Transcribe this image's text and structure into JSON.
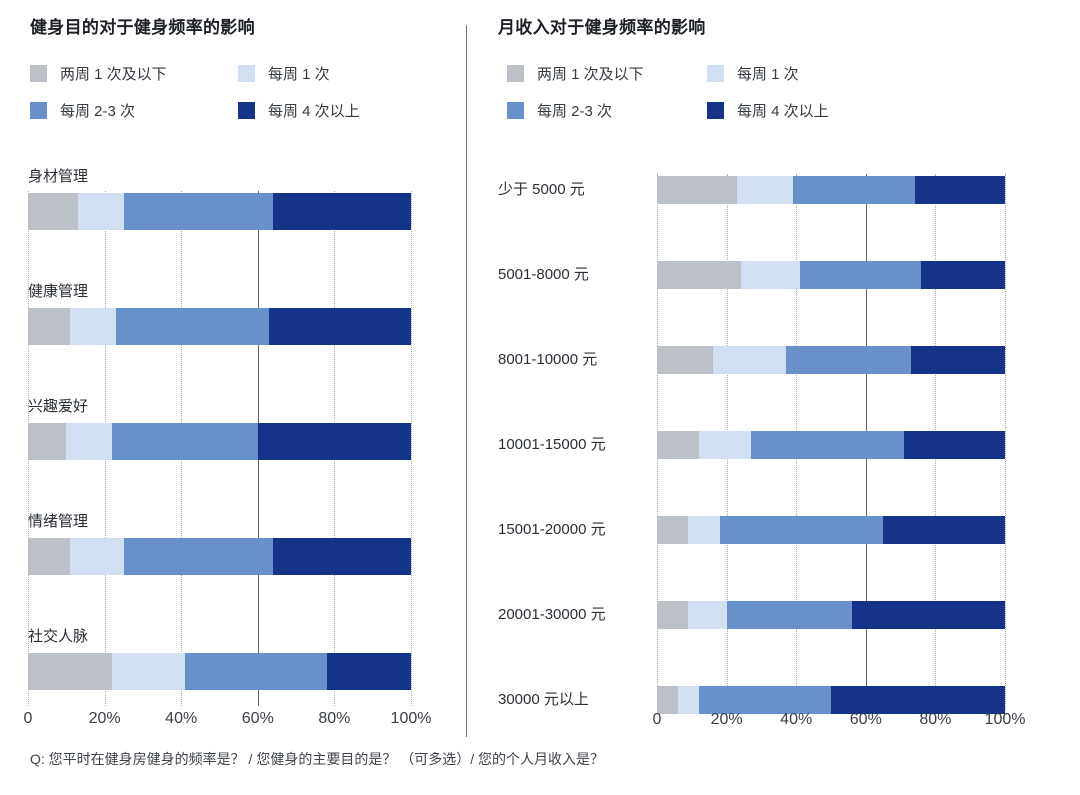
{
  "page": {
    "footnote": "Q: 您平时在健身房健身的频率是？ / 您健身的主要目的是？ （可多选）/ 您的个人月收入是？"
  },
  "legend": {
    "items": [
      {
        "label": "两周 1 次及以下",
        "color": "#bcc1c8"
      },
      {
        "label": "每周 1 次",
        "color": "#d2def2"
      },
      {
        "label": "每周 2-3 次",
        "color": "#6890cb"
      },
      {
        "label": "每周 4 次以上",
        "color": "#133489"
      }
    ]
  },
  "axis": {
    "ticks": [
      "0",
      "20%",
      "40%",
      "60%",
      "80%",
      "100%"
    ]
  },
  "colors": {
    "gridline_dotted": "#a9aeb6",
    "gridline_solid_60": "#5d636b",
    "divider": "#70757c"
  },
  "chart_data": [
    {
      "type": "bar",
      "subtype": "horizontal-100%-stacked",
      "title": "健身目的对于健身频率的影响",
      "categories": [
        "身材管理",
        "健康管理",
        "兴趣爱好",
        "情绪管理",
        "社交人脉"
      ],
      "series": [
        {
          "name": "两周 1 次及以下",
          "color": "#bcc1c8",
          "values": [
            13,
            11,
            10,
            11,
            22
          ]
        },
        {
          "name": "每周 1 次",
          "color": "#d2def2",
          "values": [
            12,
            12,
            12,
            14,
            19
          ]
        },
        {
          "name": "每周 2-3 次",
          "color": "#6890cb",
          "values": [
            39,
            40,
            38,
            39,
            37
          ]
        },
        {
          "name": "每周 4 次以上",
          "color": "#133489",
          "values": [
            36,
            37,
            40,
            36,
            22
          ]
        }
      ],
      "xlabel": "",
      "ylabel": "",
      "xticks": [
        "0",
        "20%",
        "40%",
        "60%",
        "80%",
        "100%"
      ],
      "xlim": [
        0,
        100
      ],
      "grid": "vertical dotted at every 20%, solid dark line at 60%",
      "legend_position": "top"
    },
    {
      "type": "bar",
      "subtype": "horizontal-100%-stacked",
      "title": "月收入对于健身频率的影响",
      "categories": [
        "少于 5000 元",
        "5001-8000 元",
        "8001-10000 元",
        "10001-15000 元",
        "15001-20000 元",
        "20001-30000 元",
        "30000 元以上"
      ],
      "series": [
        {
          "name": "两周 1 次及以下",
          "color": "#bcc1c8",
          "values": [
            23,
            24,
            16,
            12,
            9,
            9,
            6
          ]
        },
        {
          "name": "每周 1 次",
          "color": "#d2def2",
          "values": [
            16,
            17,
            21,
            15,
            9,
            11,
            6
          ]
        },
        {
          "name": "每周 2-3 次",
          "color": "#6890cb",
          "values": [
            35,
            35,
            36,
            44,
            47,
            36,
            38
          ]
        },
        {
          "name": "每周 4 次以上",
          "color": "#133489",
          "values": [
            26,
            24,
            27,
            29,
            35,
            44,
            50
          ]
        }
      ],
      "xlabel": "",
      "ylabel": "",
      "xticks": [
        "0",
        "20%",
        "40%",
        "60%",
        "80%",
        "100%"
      ],
      "xlim": [
        0,
        100
      ],
      "grid": "vertical dotted at every 20%, solid dark line at 60%",
      "legend_position": "top"
    }
  ]
}
